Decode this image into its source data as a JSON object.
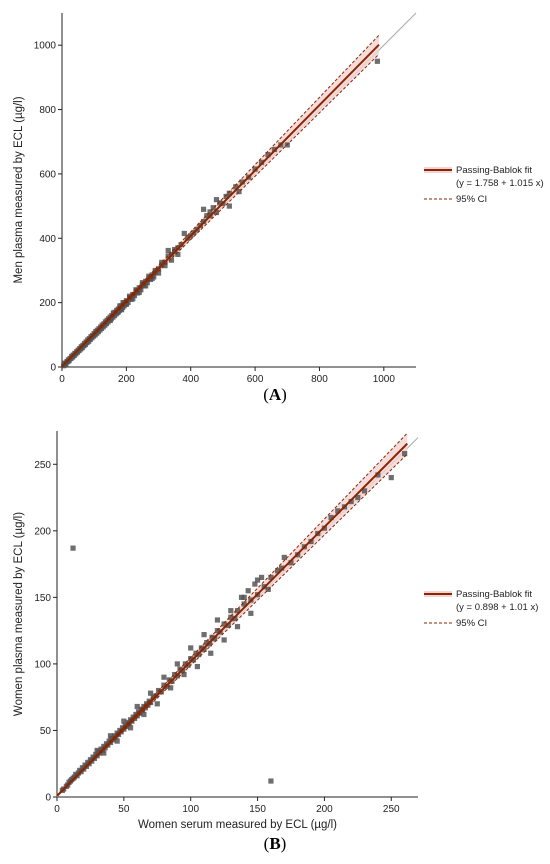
{
  "chart_data": [
    {
      "panel_label": "A",
      "type": "scatter",
      "xlabel": "Men serum measured by ECL (µg/l)",
      "ylabel": "Men plasma measured by ECL (µg/l)",
      "xlim": [
        0,
        1100
      ],
      "ylim": [
        0,
        1100
      ],
      "xticks": [
        0,
        200,
        400,
        600,
        800,
        1000
      ],
      "yticks": [
        0,
        200,
        400,
        600,
        800,
        1000
      ],
      "legend_position": "right",
      "identity_line": true,
      "fit": {
        "name": "Passing-Bablok fit",
        "equation": "(y = 1.758 + 1.015 x)",
        "intercept": 1.758,
        "slope": 1.015,
        "color": "#8B2500",
        "x_range": [
          0,
          985
        ]
      },
      "ci": {
        "name": "95% CI",
        "lower_slope": 0.985,
        "upper_slope": 1.045,
        "color": "#8B2500"
      },
      "points": [
        [
          5,
          4
        ],
        [
          8,
          8
        ],
        [
          10,
          12
        ],
        [
          12,
          10
        ],
        [
          15,
          16
        ],
        [
          18,
          17
        ],
        [
          20,
          22
        ],
        [
          22,
          20
        ],
        [
          25,
          26
        ],
        [
          28,
          27
        ],
        [
          30,
          33
        ],
        [
          33,
          31
        ],
        [
          35,
          37
        ],
        [
          38,
          36
        ],
        [
          40,
          42
        ],
        [
          43,
          41
        ],
        [
          45,
          47
        ],
        [
          48,
          46
        ],
        [
          50,
          52
        ],
        [
          53,
          51
        ],
        [
          55,
          57
        ],
        [
          58,
          56
        ],
        [
          60,
          63
        ],
        [
          63,
          60
        ],
        [
          65,
          67
        ],
        [
          68,
          66
        ],
        [
          70,
          73
        ],
        [
          73,
          70
        ],
        [
          75,
          78
        ],
        [
          78,
          76
        ],
        [
          80,
          84
        ],
        [
          83,
          80
        ],
        [
          85,
          88
        ],
        [
          88,
          86
        ],
        [
          90,
          94
        ],
        [
          93,
          91
        ],
        [
          95,
          98
        ],
        [
          98,
          96
        ],
        [
          100,
          104
        ],
        [
          103,
          100
        ],
        [
          105,
          110
        ],
        [
          108,
          105
        ],
        [
          110,
          114
        ],
        [
          113,
          110
        ],
        [
          115,
          119
        ],
        [
          118,
          115
        ],
        [
          120,
          124
        ],
        [
          123,
          120
        ],
        [
          125,
          130
        ],
        [
          128,
          125
        ],
        [
          130,
          134
        ],
        [
          133,
          130
        ],
        [
          135,
          140
        ],
        [
          138,
          135
        ],
        [
          140,
          145
        ],
        [
          143,
          140
        ],
        [
          145,
          150
        ],
        [
          148,
          146
        ],
        [
          150,
          155
        ],
        [
          153,
          150
        ],
        [
          155,
          160
        ],
        [
          158,
          155
        ],
        [
          160,
          165
        ],
        [
          163,
          160
        ],
        [
          165,
          170
        ],
        [
          168,
          165
        ],
        [
          170,
          176
        ],
        [
          173,
          170
        ],
        [
          175,
          180
        ],
        [
          178,
          176
        ],
        [
          180,
          186
        ],
        [
          183,
          180
        ],
        [
          185,
          190
        ],
        [
          188,
          185
        ],
        [
          190,
          196
        ],
        [
          193,
          190
        ],
        [
          195,
          200
        ],
        [
          198,
          195
        ],
        [
          200,
          206
        ],
        [
          205,
          200
        ],
        [
          210,
          216
        ],
        [
          215,
          210
        ],
        [
          220,
          225
        ],
        [
          225,
          222
        ],
        [
          230,
          236
        ],
        [
          235,
          230
        ],
        [
          240,
          246
        ],
        [
          245,
          240
        ],
        [
          250,
          256
        ],
        [
          255,
          252
        ],
        [
          260,
          266
        ],
        [
          265,
          262
        ],
        [
          270,
          276
        ],
        [
          275,
          272
        ],
        [
          280,
          286
        ],
        [
          285,
          280
        ],
        [
          290,
          296
        ],
        [
          300,
          305
        ],
        [
          310,
          318
        ],
        [
          320,
          325
        ],
        [
          330,
          362
        ],
        [
          340,
          350
        ],
        [
          350,
          358
        ],
        [
          360,
          370
        ],
        [
          370,
          380
        ],
        [
          380,
          415
        ],
        [
          390,
          400
        ],
        [
          400,
          408
        ],
        [
          410,
          418
        ],
        [
          420,
          428
        ],
        [
          430,
          440
        ],
        [
          440,
          452
        ],
        [
          450,
          470
        ],
        [
          460,
          482
        ],
        [
          470,
          495
        ],
        [
          480,
          520
        ],
        [
          490,
          510
        ],
        [
          500,
          508
        ],
        [
          510,
          530
        ],
        [
          520,
          540
        ],
        [
          540,
          560
        ],
        [
          560,
          575
        ],
        [
          580,
          590
        ],
        [
          600,
          615
        ],
        [
          620,
          636
        ],
        [
          640,
          660
        ],
        [
          660,
          676
        ],
        [
          680,
          690
        ],
        [
          700,
          690
        ],
        [
          980,
          950
        ],
        [
          150,
          145
        ],
        [
          160,
          168
        ],
        [
          170,
          168
        ],
        [
          175,
          172
        ],
        [
          180,
          190
        ],
        [
          185,
          178
        ],
        [
          190,
          200
        ],
        [
          200,
          195
        ],
        [
          210,
          220
        ],
        [
          220,
          212
        ],
        [
          230,
          240
        ],
        [
          240,
          232
        ],
        [
          250,
          262
        ],
        [
          260,
          252
        ],
        [
          270,
          282
        ],
        [
          280,
          275
        ],
        [
          290,
          300
        ],
        [
          300,
          292
        ],
        [
          310,
          325
        ],
        [
          320,
          315
        ],
        [
          330,
          345
        ],
        [
          340,
          332
        ],
        [
          350,
          365
        ],
        [
          360,
          350
        ],
        [
          440,
          490
        ],
        [
          460,
          470
        ],
        [
          480,
          480
        ],
        [
          520,
          500
        ],
        [
          550,
          545
        ]
      ]
    },
    {
      "panel_label": "B",
      "type": "scatter",
      "xlabel": "Women serum measured by ECL (µg/l)",
      "ylabel": "Women plasma measured by ECL (µg/l)",
      "xlim": [
        0,
        270
      ],
      "ylim": [
        0,
        275
      ],
      "xticks": [
        0,
        50,
        100,
        150,
        200,
        250
      ],
      "yticks": [
        0,
        50,
        100,
        150,
        200,
        250
      ],
      "legend_position": "right",
      "identity_line": true,
      "fit": {
        "name": "Passing-Bablok fit",
        "equation": "(y = 0.898 + 1.01 x)",
        "intercept": 0.898,
        "slope": 1.01,
        "color": "#8B2500",
        "x_range": [
          0,
          262
        ]
      },
      "ci": {
        "name": "95% CI",
        "lower_slope": 0.98,
        "upper_slope": 1.04,
        "color": "#8B2500"
      },
      "points": [
        [
          4,
          5
        ],
        [
          5,
          6
        ],
        [
          7,
          8
        ],
        [
          8,
          9
        ],
        [
          9,
          11
        ],
        [
          10,
          12
        ],
        [
          11,
          13
        ],
        [
          12,
          14
        ],
        [
          13,
          15
        ],
        [
          14,
          17
        ],
        [
          15,
          16
        ],
        [
          16,
          18
        ],
        [
          17,
          20
        ],
        [
          18,
          19
        ],
        [
          19,
          22
        ],
        [
          20,
          21
        ],
        [
          21,
          24
        ],
        [
          22,
          23
        ],
        [
          23,
          26
        ],
        [
          24,
          25
        ],
        [
          25,
          28
        ],
        [
          26,
          27
        ],
        [
          27,
          30
        ],
        [
          28,
          29
        ],
        [
          29,
          32
        ],
        [
          30,
          31
        ],
        [
          31,
          34
        ],
        [
          32,
          33
        ],
        [
          33,
          36
        ],
        [
          34,
          35
        ],
        [
          35,
          38
        ],
        [
          36,
          37
        ],
        [
          37,
          40
        ],
        [
          38,
          39
        ],
        [
          39,
          42
        ],
        [
          40,
          41
        ],
        [
          41,
          44
        ],
        [
          42,
          43
        ],
        [
          43,
          46
        ],
        [
          44,
          45
        ],
        [
          45,
          48
        ],
        [
          46,
          47
        ],
        [
          47,
          50
        ],
        [
          48,
          49
        ],
        [
          49,
          52
        ],
        [
          50,
          51
        ],
        [
          51,
          54
        ],
        [
          52,
          53
        ],
        [
          53,
          56
        ],
        [
          54,
          55
        ],
        [
          55,
          58
        ],
        [
          56,
          57
        ],
        [
          57,
          60
        ],
        [
          58,
          59
        ],
        [
          59,
          62
        ],
        [
          60,
          61
        ],
        [
          61,
          64
        ],
        [
          62,
          63
        ],
        [
          63,
          66
        ],
        [
          64,
          65
        ],
        [
          65,
          68
        ],
        [
          66,
          67
        ],
        [
          67,
          70
        ],
        [
          68,
          69
        ],
        [
          69,
          72
        ],
        [
          70,
          71
        ],
        [
          72,
          75
        ],
        [
          74,
          76
        ],
        [
          76,
          80
        ],
        [
          78,
          79
        ],
        [
          80,
          84
        ],
        [
          82,
          83
        ],
        [
          84,
          88
        ],
        [
          86,
          87
        ],
        [
          88,
          92
        ],
        [
          90,
          91
        ],
        [
          92,
          96
        ],
        [
          94,
          95
        ],
        [
          96,
          100
        ],
        [
          98,
          99
        ],
        [
          100,
          104
        ],
        [
          102,
          103
        ],
        [
          104,
          108
        ],
        [
          106,
          107
        ],
        [
          108,
          112
        ],
        [
          110,
          111
        ],
        [
          112,
          116
        ],
        [
          114,
          115
        ],
        [
          116,
          120
        ],
        [
          118,
          119
        ],
        [
          120,
          125
        ],
        [
          122,
          124
        ],
        [
          125,
          130
        ],
        [
          128,
          129
        ],
        [
          130,
          135
        ],
        [
          133,
          134
        ],
        [
          135,
          140
        ],
        [
          138,
          150
        ],
        [
          140,
          145
        ],
        [
          143,
          155
        ],
        [
          145,
          148
        ],
        [
          148,
          160
        ],
        [
          150,
          152
        ],
        [
          153,
          165
        ],
        [
          155,
          158
        ],
        [
          158,
          156
        ],
        [
          160,
          165
        ],
        [
          165,
          170
        ],
        [
          168,
          172
        ],
        [
          170,
          180
        ],
        [
          175,
          176
        ],
        [
          180,
          182
        ],
        [
          185,
          188
        ],
        [
          190,
          192
        ],
        [
          195,
          198
        ],
        [
          200,
          202
        ],
        [
          205,
          210
        ],
        [
          210,
          215
        ],
        [
          215,
          218
        ],
        [
          220,
          222
        ],
        [
          225,
          225
        ],
        [
          230,
          230
        ],
        [
          240,
          242
        ],
        [
          250,
          240
        ],
        [
          260,
          258
        ],
        [
          12,
          187
        ],
        [
          160,
          12
        ],
        [
          30,
          35
        ],
        [
          35,
          33
        ],
        [
          40,
          46
        ],
        [
          45,
          42
        ],
        [
          50,
          57
        ],
        [
          55,
          52
        ],
        [
          60,
          68
        ],
        [
          65,
          62
        ],
        [
          70,
          78
        ],
        [
          75,
          70
        ],
        [
          80,
          90
        ],
        [
          85,
          82
        ],
        [
          90,
          100
        ],
        [
          95,
          92
        ],
        [
          100,
          112
        ],
        [
          105,
          98
        ],
        [
          110,
          122
        ],
        [
          115,
          108
        ],
        [
          120,
          133
        ],
        [
          125,
          118
        ],
        [
          130,
          140
        ],
        [
          135,
          128
        ],
        [
          140,
          150
        ],
        [
          145,
          138
        ],
        [
          150,
          163
        ]
      ]
    }
  ]
}
